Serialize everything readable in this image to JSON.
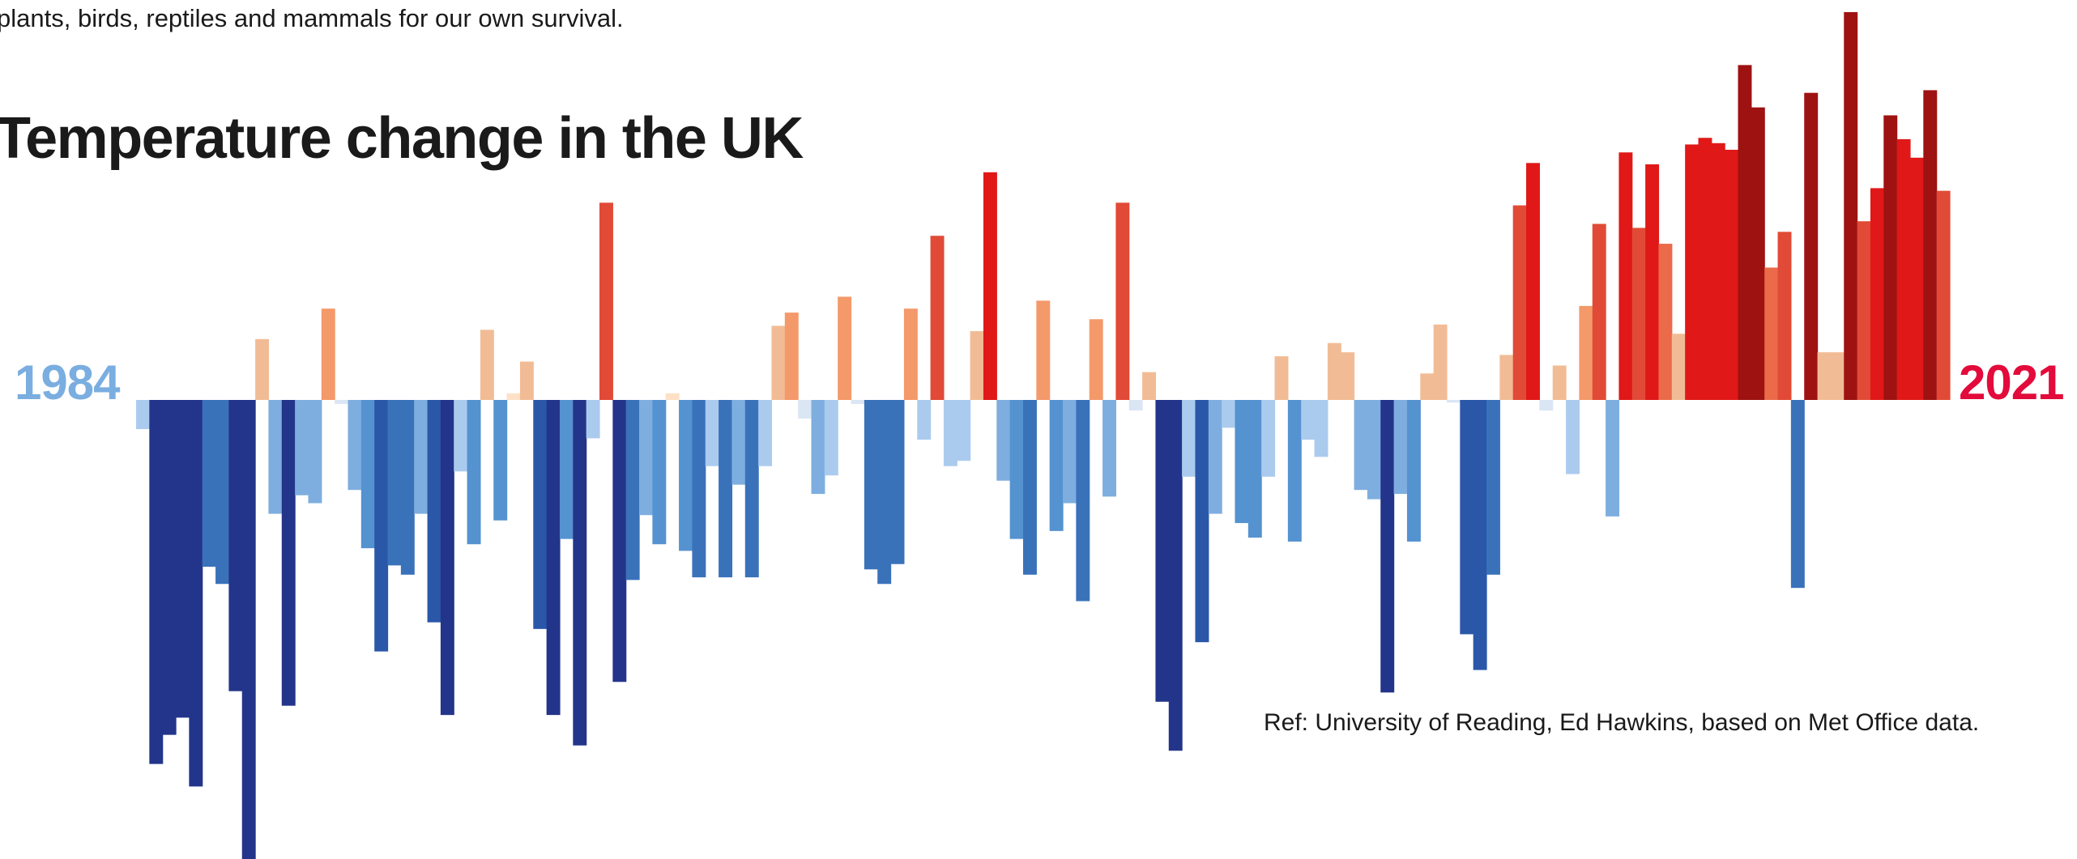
{
  "intro_fragment": "plants, birds, reptiles and mammals for our own survival.",
  "title": "Temperature change in the UK",
  "year_start": "1984",
  "year_end": "2021",
  "reference": "Ref: University of Reading, Ed Hawkins, based on Met Office data.",
  "colors": {
    "year_start": "#7aaee0",
    "year_end": "#e30b3b",
    "text": "#1a1a1a"
  },
  "chart_data": {
    "type": "bar",
    "description_unit": "relative temperature anomaly (unlabelled)",
    "baseline": 0,
    "ylim": [
      -35,
      30
    ],
    "values": [
      -2.2,
      -27.5,
      -25.3,
      -24.0,
      -29.2,
      -12.6,
      -13.9,
      -22.0,
      -34.8,
      4.6,
      -8.6,
      -23.1,
      -7.2,
      -7.8,
      6.9,
      -0.3,
      -6.8,
      -11.2,
      -19.0,
      -12.5,
      -13.2,
      -8.6,
      -16.8,
      -23.8,
      -5.4,
      -10.9,
      5.3,
      -9.1,
      0.5,
      2.9,
      -17.3,
      -23.8,
      -10.5,
      -26.1,
      -2.9,
      14.9,
      -21.3,
      -13.6,
      -8.7,
      -10.9,
      0.5,
      -11.4,
      -13.4,
      -5.0,
      -13.4,
      -6.4,
      -13.4,
      -5.0,
      5.6,
      6.6,
      -1.4,
      -7.1,
      -5.7,
      7.8,
      -0.3,
      -12.8,
      -13.9,
      -12.4,
      6.9,
      -3.0,
      12.4,
      -5.0,
      -4.6,
      5.2,
      17.2,
      -6.1,
      -10.5,
      -13.2,
      7.5,
      -9.9,
      -7.8,
      -15.2,
      6.1,
      -7.3,
      14.9,
      -0.8,
      2.1,
      -22.8,
      -26.5,
      -5.8,
      -18.3,
      -8.6,
      -2.1,
      -9.3,
      -10.4,
      -5.8,
      3.3,
      -10.7,
      -3.0,
      -4.3,
      4.3,
      3.6,
      -6.8,
      -7.5,
      -22.1,
      -7.1,
      -10.7,
      2.0,
      5.7,
      -0.2,
      -17.7,
      -20.4,
      -13.2,
      3.4,
      14.7,
      17.9,
      -0.8,
      2.6,
      -5.6,
      7.1,
      13.3,
      -8.8,
      18.7,
      13.0,
      17.8,
      11.8,
      5.0,
      19.3,
      19.8,
      19.4,
      18.9,
      25.3,
      22.1,
      10.0,
      12.7,
      -14.2,
      23.2,
      3.6,
      3.6,
      29.3,
      13.5,
      16.0,
      21.5,
      19.7,
      18.3,
      23.4,
      15.8
    ]
  }
}
